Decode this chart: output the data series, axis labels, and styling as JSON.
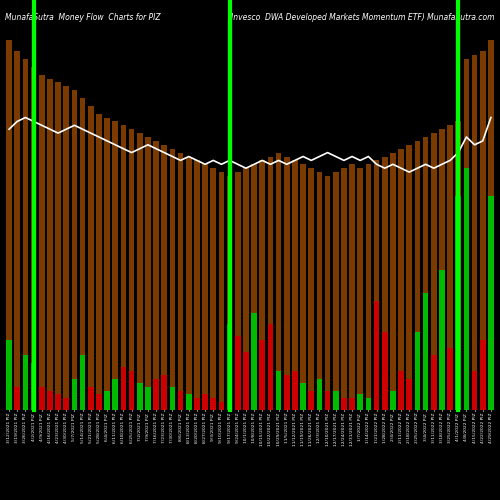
{
  "title_left": "MunafaSutra  Money Flow  Charts for PIZ",
  "title_right": "(Invesco  DWA Developed Markets Momentum ETF) MunafaSutra.com",
  "bg_color": "#000000",
  "green_line_color": "#00ff00",
  "white_line_color": "#ffffff",
  "dark_bar_color": "#7B3A00",
  "green_bar_color": "#00bb00",
  "red_bar_color": "#cc0000",
  "green_vline_positions": [
    3,
    27,
    55
  ],
  "bar_data": [
    {
      "tall": 95,
      "short": 18,
      "short_color": "green"
    },
    {
      "tall": 92,
      "short": 6,
      "short_color": "red"
    },
    {
      "tall": 90,
      "short": 14,
      "short_color": "green"
    },
    {
      "tall": 88,
      "short": 12,
      "short_color": "green"
    },
    {
      "tall": 86,
      "short": 6,
      "short_color": "red"
    },
    {
      "tall": 85,
      "short": 5,
      "short_color": "red"
    },
    {
      "tall": 84,
      "short": 4,
      "short_color": "red"
    },
    {
      "tall": 83,
      "short": 3,
      "short_color": "red"
    },
    {
      "tall": 82,
      "short": 8,
      "short_color": "green"
    },
    {
      "tall": 80,
      "short": 14,
      "short_color": "green"
    },
    {
      "tall": 78,
      "short": 6,
      "short_color": "red"
    },
    {
      "tall": 76,
      "short": 4,
      "short_color": "red"
    },
    {
      "tall": 75,
      "short": 5,
      "short_color": "green"
    },
    {
      "tall": 74,
      "short": 8,
      "short_color": "green"
    },
    {
      "tall": 73,
      "short": 11,
      "short_color": "red"
    },
    {
      "tall": 72,
      "short": 10,
      "short_color": "red"
    },
    {
      "tall": 71,
      "short": 7,
      "short_color": "green"
    },
    {
      "tall": 70,
      "short": 6,
      "short_color": "green"
    },
    {
      "tall": 69,
      "short": 8,
      "short_color": "red"
    },
    {
      "tall": 68,
      "short": 9,
      "short_color": "red"
    },
    {
      "tall": 67,
      "short": 6,
      "short_color": "green"
    },
    {
      "tall": 66,
      "short": 5,
      "short_color": "red"
    },
    {
      "tall": 65,
      "short": 4,
      "short_color": "green"
    },
    {
      "tall": 64,
      "short": 3,
      "short_color": "red"
    },
    {
      "tall": 63,
      "short": 4,
      "short_color": "red"
    },
    {
      "tall": 62,
      "short": 3,
      "short_color": "red"
    },
    {
      "tall": 61,
      "short": 2,
      "short_color": "red"
    },
    {
      "tall": 60,
      "short": 22,
      "short_color": "green"
    },
    {
      "tall": 61,
      "short": 19,
      "short_color": "red"
    },
    {
      "tall": 62,
      "short": 15,
      "short_color": "red"
    },
    {
      "tall": 63,
      "short": 25,
      "short_color": "green"
    },
    {
      "tall": 64,
      "short": 18,
      "short_color": "red"
    },
    {
      "tall": 65,
      "short": 22,
      "short_color": "red"
    },
    {
      "tall": 66,
      "short": 10,
      "short_color": "green"
    },
    {
      "tall": 65,
      "short": 9,
      "short_color": "red"
    },
    {
      "tall": 64,
      "short": 10,
      "short_color": "red"
    },
    {
      "tall": 63,
      "short": 7,
      "short_color": "green"
    },
    {
      "tall": 62,
      "short": 5,
      "short_color": "red"
    },
    {
      "tall": 61,
      "short": 8,
      "short_color": "green"
    },
    {
      "tall": 60,
      "short": 5,
      "short_color": "red"
    },
    {
      "tall": 61,
      "short": 5,
      "short_color": "green"
    },
    {
      "tall": 62,
      "short": 3,
      "short_color": "red"
    },
    {
      "tall": 63,
      "short": 3,
      "short_color": "red"
    },
    {
      "tall": 62,
      "short": 4,
      "short_color": "green"
    },
    {
      "tall": 63,
      "short": 3,
      "short_color": "green"
    },
    {
      "tall": 64,
      "short": 28,
      "short_color": "red"
    },
    {
      "tall": 65,
      "short": 20,
      "short_color": "red"
    },
    {
      "tall": 66,
      "short": 5,
      "short_color": "green"
    },
    {
      "tall": 67,
      "short": 10,
      "short_color": "red"
    },
    {
      "tall": 68,
      "short": 8,
      "short_color": "red"
    },
    {
      "tall": 69,
      "short": 20,
      "short_color": "green"
    },
    {
      "tall": 70,
      "short": 30,
      "short_color": "green"
    },
    {
      "tall": 71,
      "short": 14,
      "short_color": "red"
    },
    {
      "tall": 72,
      "short": 36,
      "short_color": "green"
    },
    {
      "tall": 73,
      "short": 16,
      "short_color": "red"
    },
    {
      "tall": 74,
      "short": 55,
      "short_color": "green"
    },
    {
      "tall": 90,
      "short": 62,
      "short_color": "green"
    },
    {
      "tall": 91,
      "short": 10,
      "short_color": "red"
    },
    {
      "tall": 92,
      "short": 18,
      "short_color": "red"
    },
    {
      "tall": 95,
      "short": 55,
      "short_color": "green"
    }
  ],
  "x_labels": [
    "3/12/2021 PIZ",
    "3/19/2021 PIZ",
    "3/26/2021 PIZ",
    "4/2/2021 PIZ",
    "4/9/2021 PIZ",
    "4/16/2021 PIZ",
    "4/23/2021 PIZ",
    "4/30/2021 PIZ",
    "5/7/2021 PIZ",
    "5/14/2021 PIZ",
    "5/21/2021 PIZ",
    "5/28/2021 PIZ",
    "6/4/2021 PIZ",
    "6/11/2021 PIZ",
    "6/18/2021 PIZ",
    "6/25/2021 PIZ",
    "7/2/2021 PIZ",
    "7/9/2021 PIZ",
    "7/16/2021 PIZ",
    "7/23/2021 PIZ",
    "7/30/2021 PIZ",
    "8/6/2021 PIZ",
    "8/13/2021 PIZ",
    "8/20/2021 PIZ",
    "8/27/2021 PIZ",
    "9/3/2021 PIZ",
    "9/10/2021 PIZ",
    "9/17/2021 PIZ",
    "9/24/2021 PIZ",
    "10/1/2021 PIZ",
    "10/8/2021 PIZ",
    "10/15/2021 PIZ",
    "10/22/2021 PIZ",
    "10/29/2021 PIZ",
    "11/5/2021 PIZ",
    "11/12/2021 PIZ",
    "11/19/2021 PIZ",
    "11/26/2021 PIZ",
    "12/3/2021 PIZ",
    "12/10/2021 PIZ",
    "12/17/2021 PIZ",
    "12/24/2021 PIZ",
    "12/31/2021 PIZ",
    "1/7/2022 PIZ",
    "1/14/2022 PIZ",
    "1/21/2022 PIZ",
    "1/28/2022 PIZ",
    "2/4/2022 PIZ",
    "2/11/2022 PIZ",
    "2/18/2022 PIZ",
    "2/25/2022 PIZ",
    "3/4/2022 PIZ",
    "3/11/2022 PIZ",
    "3/18/2022 PIZ",
    "3/25/2022 PIZ",
    "4/1/2022 PIZ",
    "4/8/2022 PIZ",
    "4/15/2022 PIZ",
    "4/22/2022 PIZ",
    "4/29/2022 PIZ"
  ],
  "white_line_y": [
    72,
    74,
    75,
    74,
    73,
    72,
    71,
    72,
    73,
    72,
    71,
    70,
    69,
    68,
    67,
    66,
    67,
    68,
    67,
    66,
    65,
    64,
    65,
    64,
    63,
    64,
    63,
    64,
    63,
    62,
    63,
    64,
    63,
    64,
    63,
    64,
    65,
    64,
    65,
    66,
    65,
    64,
    65,
    64,
    65,
    63,
    62,
    63,
    62,
    61,
    62,
    63,
    62,
    63,
    64,
    66,
    70,
    68,
    69,
    75
  ]
}
